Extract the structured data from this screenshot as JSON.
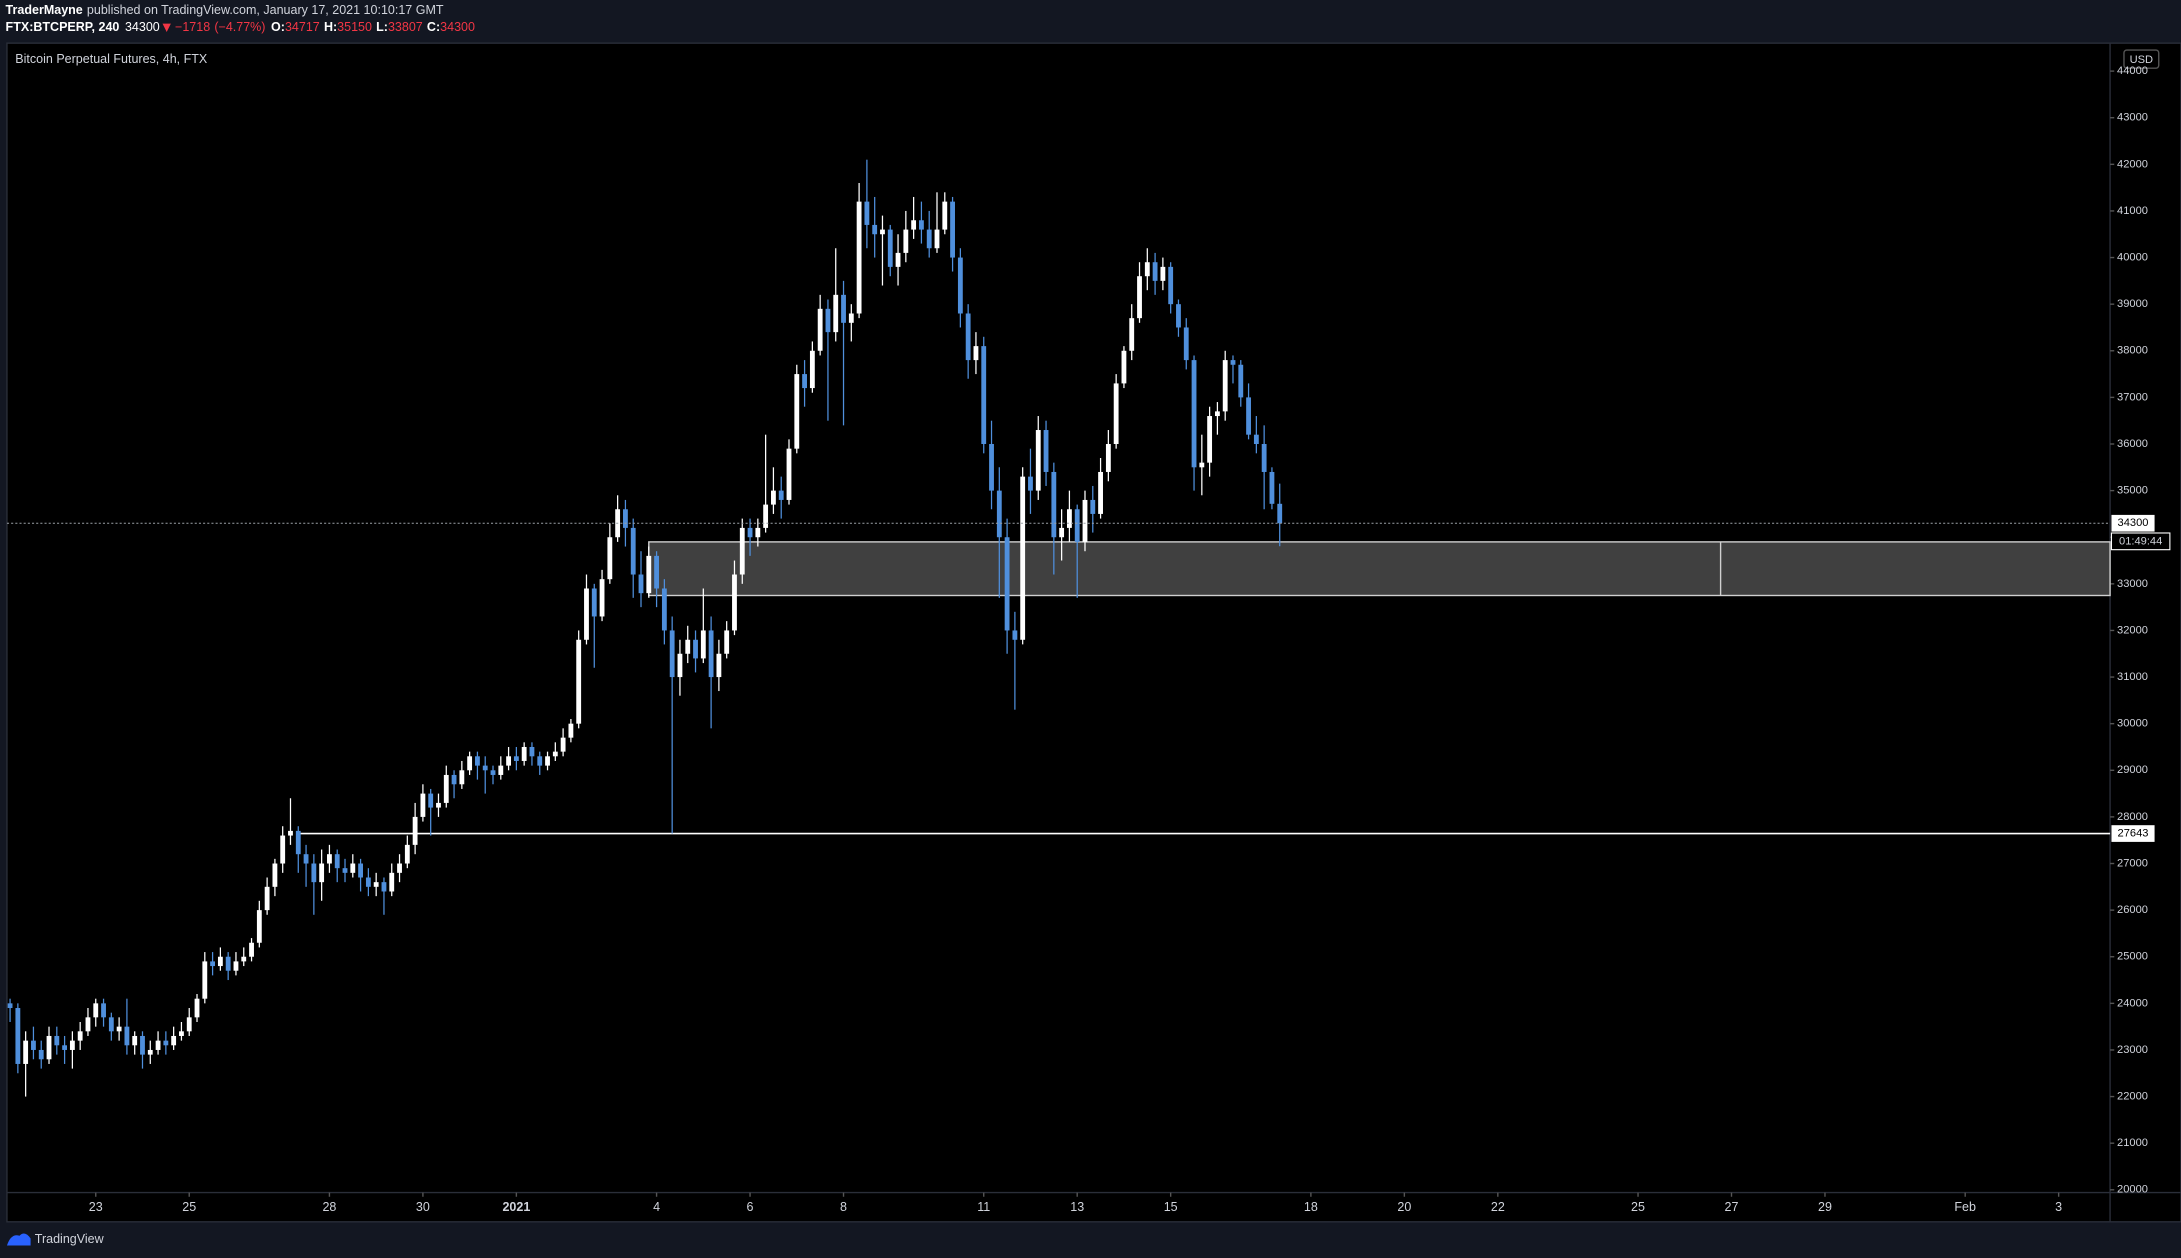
{
  "header": {
    "author": "TraderMayne",
    "published": "published on TradingView.com, January 17, 2021 10:10:17 GMT"
  },
  "footer": {
    "brand": "TradingView"
  },
  "chart_data": {
    "type": "candlestick",
    "title": "Bitcoin Perpetual Futures, 4h, FTX",
    "symbol": "FTX:BTCPERP, 240",
    "change": {
      "value": -1718,
      "label": "−1718"
    },
    "change_pct": {
      "value": -4.77,
      "label": "(−4.77%)"
    },
    "ohlc_labels": [
      "O:",
      "H:",
      "L:",
      "C:"
    ],
    "currency": "USD",
    "countdown": "01:49:44",
    "up_color": "#ffffff",
    "down_color": "#4f8fdc",
    "grid": false,
    "ylim": [
      19940,
      44600
    ],
    "yticks": [
      20000,
      21000,
      22000,
      23000,
      24000,
      25000,
      26000,
      27000,
      28000,
      29000,
      30000,
      31000,
      32000,
      33000,
      34000,
      35000,
      36000,
      37000,
      38000,
      39000,
      40000,
      41000,
      42000,
      43000,
      44000
    ],
    "xlim": [
      -0.4,
      269.6
    ],
    "xticks": [
      {
        "value": 11,
        "label": "23"
      },
      {
        "value": 23,
        "label": "25"
      },
      {
        "value": 41,
        "label": "28"
      },
      {
        "value": 53,
        "label": "30"
      },
      {
        "value": 65,
        "label": "2021"
      },
      {
        "value": 83,
        "label": "4"
      },
      {
        "value": 95,
        "label": "6"
      },
      {
        "value": 107,
        "label": "8"
      },
      {
        "value": 125,
        "label": "11"
      },
      {
        "value": 137,
        "label": "13"
      },
      {
        "value": 149,
        "label": "15"
      },
      {
        "value": 167,
        "label": "18"
      },
      {
        "value": 179,
        "label": "20"
      },
      {
        "value": 191,
        "label": "22"
      },
      {
        "value": 209,
        "label": "25"
      },
      {
        "value": 221,
        "label": "27"
      },
      {
        "value": 233,
        "label": "29"
      },
      {
        "value": 251,
        "label": "Feb"
      },
      {
        "value": 263,
        "label": "3"
      }
    ],
    "zones": [
      {
        "low": 32750,
        "high": 33900,
        "x_start": 82,
        "x_split": 219.6,
        "color": "#404040",
        "border": "#d0d0d0"
      }
    ],
    "hlines": [
      {
        "value": 27643,
        "x_start": 37,
        "color": "#ffffff"
      }
    ],
    "ohlc": [
      [
        24000,
        24100,
        23600,
        23900
      ],
      [
        23900,
        24000,
        22500,
        22700
      ],
      [
        22700,
        23400,
        22000,
        23200
      ],
      [
        23200,
        23500,
        22800,
        23000
      ],
      [
        23000,
        23200,
        22600,
        22800
      ],
      [
        22800,
        23500,
        22700,
        23300
      ],
      [
        23300,
        23500,
        22900,
        23100
      ],
      [
        23100,
        23300,
        22700,
        23000
      ],
      [
        23000,
        23400,
        22600,
        23200
      ],
      [
        23200,
        23600,
        23000,
        23400
      ],
      [
        23400,
        23900,
        23300,
        23700
      ],
      [
        23700,
        24100,
        23500,
        24000
      ],
      [
        24000,
        24100,
        23500,
        23700
      ],
      [
        23700,
        23800,
        23200,
        23400
      ],
      [
        23400,
        23700,
        23200,
        23500
      ],
      [
        23500,
        24100,
        22900,
        23100
      ],
      [
        23100,
        23400,
        22900,
        23300
      ],
      [
        23300,
        23400,
        22600,
        22900
      ],
      [
        22900,
        23200,
        22700,
        23000
      ],
      [
        23000,
        23400,
        22900,
        23200
      ],
      [
        23200,
        23400,
        22900,
        23100
      ],
      [
        23100,
        23500,
        23000,
        23300
      ],
      [
        23300,
        23600,
        23200,
        23400
      ],
      [
        23400,
        23900,
        23300,
        23700
      ],
      [
        23700,
        24200,
        23600,
        24100
      ],
      [
        24100,
        25100,
        24000,
        24900
      ],
      [
        24900,
        25100,
        24600,
        24800
      ],
      [
        24800,
        25200,
        24700,
        25000
      ],
      [
        25000,
        25100,
        24500,
        24700
      ],
      [
        24700,
        25100,
        24600,
        24900
      ],
      [
        24900,
        25200,
        24800,
        25000
      ],
      [
        25000,
        25400,
        24900,
        25300
      ],
      [
        25300,
        26200,
        25200,
        26000
      ],
      [
        26000,
        26700,
        25900,
        26500
      ],
      [
        26500,
        27100,
        26300,
        27000
      ],
      [
        27000,
        27800,
        26800,
        27600
      ],
      [
        27600,
        28400,
        27400,
        27700
      ],
      [
        27700,
        27800,
        26800,
        27200
      ],
      [
        27200,
        27400,
        26500,
        27000
      ],
      [
        27000,
        27200,
        25900,
        26600
      ],
      [
        26600,
        27300,
        26200,
        27000
      ],
      [
        27000,
        27400,
        26800,
        27200
      ],
      [
        27200,
        27300,
        26600,
        26900
      ],
      [
        26900,
        27100,
        26600,
        26800
      ],
      [
        26800,
        27200,
        26700,
        27000
      ],
      [
        27000,
        27100,
        26400,
        26700
      ],
      [
        26700,
        26900,
        26300,
        26500
      ],
      [
        26500,
        26800,
        26300,
        26600
      ],
      [
        26600,
        26700,
        25900,
        26400
      ],
      [
        26400,
        27000,
        26300,
        26800
      ],
      [
        26800,
        27200,
        26600,
        27000
      ],
      [
        27000,
        27600,
        26900,
        27400
      ],
      [
        27400,
        28300,
        27200,
        28000
      ],
      [
        28000,
        28700,
        27900,
        28500
      ],
      [
        28500,
        28600,
        27600,
        28200
      ],
      [
        28200,
        28500,
        28000,
        28300
      ],
      [
        28300,
        29100,
        28200,
        28900
      ],
      [
        28900,
        29000,
        28400,
        28700
      ],
      [
        28700,
        29200,
        28600,
        29000
      ],
      [
        29000,
        29400,
        28900,
        29300
      ],
      [
        29300,
        29400,
        28800,
        29100
      ],
      [
        29100,
        29300,
        28500,
        29000
      ],
      [
        29000,
        29100,
        28700,
        28900
      ],
      [
        28900,
        29300,
        28800,
        29100
      ],
      [
        29100,
        29500,
        29000,
        29300
      ],
      [
        29300,
        29500,
        29000,
        29200
      ],
      [
        29200,
        29600,
        29100,
        29500
      ],
      [
        29500,
        29600,
        29100,
        29300
      ],
      [
        29300,
        29400,
        28900,
        29100
      ],
      [
        29100,
        29400,
        29000,
        29300
      ],
      [
        29300,
        29600,
        29200,
        29400
      ],
      [
        29400,
        29900,
        29300,
        29700
      ],
      [
        29700,
        30100,
        29600,
        30000
      ],
      [
        30000,
        32000,
        29900,
        31800
      ],
      [
        31800,
        33200,
        31700,
        32900
      ],
      [
        32900,
        33000,
        31200,
        32300
      ],
      [
        32300,
        33300,
        32200,
        33100
      ],
      [
        33100,
        34300,
        33000,
        34000
      ],
      [
        34000,
        34900,
        33900,
        34600
      ],
      [
        34600,
        34800,
        33800,
        34200
      ],
      [
        34200,
        34400,
        32700,
        33200
      ],
      [
        33200,
        33700,
        32500,
        32800
      ],
      [
        32800,
        33800,
        32700,
        33600
      ],
      [
        33600,
        33700,
        32500,
        32900
      ],
      [
        32900,
        33100,
        31700,
        32000
      ],
      [
        32000,
        32300,
        27643,
        31000
      ],
      [
        31000,
        31800,
        30600,
        31500
      ],
      [
        31500,
        32100,
        31300,
        31800
      ],
      [
        31800,
        32000,
        31100,
        31400
      ],
      [
        31400,
        32900,
        31300,
        32000
      ],
      [
        32000,
        32300,
        29900,
        31000
      ],
      [
        31000,
        31800,
        30700,
        31500
      ],
      [
        31500,
        32200,
        31400,
        32000
      ],
      [
        32000,
        33500,
        31900,
        33200
      ],
      [
        33200,
        34400,
        33000,
        34200
      ],
      [
        34200,
        34400,
        33600,
        34000
      ],
      [
        34000,
        34400,
        33800,
        34200
      ],
      [
        34200,
        36200,
        34100,
        34700
      ],
      [
        34700,
        35500,
        34500,
        35000
      ],
      [
        35000,
        35300,
        34400,
        34800
      ],
      [
        34800,
        36100,
        34700,
        35900
      ],
      [
        35900,
        37700,
        35800,
        37500
      ],
      [
        37500,
        37800,
        36800,
        37200
      ],
      [
        37200,
        38200,
        37100,
        38000
      ],
      [
        38000,
        39200,
        37900,
        38900
      ],
      [
        38900,
        39100,
        36500,
        38400
      ],
      [
        38400,
        40200,
        38200,
        39200
      ],
      [
        39200,
        39500,
        36400,
        38600
      ],
      [
        38600,
        39000,
        38200,
        38800
      ],
      [
        38800,
        41600,
        38700,
        41200
      ],
      [
        41200,
        42100,
        40200,
        40700
      ],
      [
        40700,
        41300,
        40000,
        40500
      ],
      [
        40500,
        40900,
        39400,
        40600
      ],
      [
        40600,
        40700,
        39600,
        39800
      ],
      [
        39800,
        40500,
        39400,
        40100
      ],
      [
        40100,
        41000,
        39900,
        40600
      ],
      [
        40600,
        41300,
        40400,
        40800
      ],
      [
        40800,
        41200,
        40300,
        40600
      ],
      [
        40600,
        41000,
        40000,
        40200
      ],
      [
        40200,
        41400,
        40100,
        40600
      ],
      [
        40600,
        41400,
        40500,
        41200
      ],
      [
        41200,
        41300,
        39700,
        40000
      ],
      [
        40000,
        40200,
        38500,
        38800
      ],
      [
        38800,
        39000,
        37400,
        37800
      ],
      [
        37800,
        38400,
        37500,
        38100
      ],
      [
        38100,
        38300,
        35800,
        36000
      ],
      [
        36000,
        36500,
        34600,
        35000
      ],
      [
        35000,
        35500,
        32700,
        34000
      ],
      [
        34000,
        34400,
        31500,
        32000
      ],
      [
        32000,
        32400,
        30300,
        31800
      ],
      [
        31800,
        35500,
        31700,
        35300
      ],
      [
        35300,
        35900,
        34500,
        35000
      ],
      [
        35000,
        36600,
        34800,
        36300
      ],
      [
        36300,
        36500,
        35100,
        35400
      ],
      [
        35400,
        35600,
        33200,
        34000
      ],
      [
        34000,
        34600,
        33500,
        34200
      ],
      [
        34200,
        35000,
        33900,
        34600
      ],
      [
        34600,
        34700,
        32700,
        33900
      ],
      [
        33900,
        35000,
        33700,
        34800
      ],
      [
        34800,
        35100,
        34100,
        34500
      ],
      [
        34500,
        35700,
        34400,
        35400
      ],
      [
        35400,
        36300,
        35200,
        36000
      ],
      [
        36000,
        37500,
        35900,
        37300
      ],
      [
        37300,
        38100,
        37200,
        38000
      ],
      [
        38000,
        39000,
        37800,
        38700
      ],
      [
        38700,
        39900,
        38600,
        39600
      ],
      [
        39600,
        40200,
        39300,
        39900
      ],
      [
        39900,
        40100,
        39200,
        39500
      ],
      [
        39500,
        40000,
        39300,
        39800
      ],
      [
        39800,
        39900,
        38800,
        39000
      ],
      [
        39000,
        39100,
        38300,
        38500
      ],
      [
        38500,
        38700,
        37600,
        37800
      ],
      [
        37800,
        37900,
        35000,
        35500
      ],
      [
        35500,
        36200,
        34900,
        35600
      ],
      [
        35600,
        36800,
        35300,
        36600
      ],
      [
        36600,
        36900,
        36200,
        36700
      ],
      [
        36700,
        38000,
        36500,
        37800
      ],
      [
        37800,
        37900,
        37300,
        37700
      ],
      [
        37700,
        37800,
        36800,
        37000
      ],
      [
        37000,
        37300,
        36100,
        36200
      ],
      [
        36200,
        36600,
        35800,
        36000
      ],
      [
        36000,
        36400,
        34600,
        35400
      ],
      [
        35400,
        35500,
        34600,
        34717
      ],
      [
        34717,
        35150,
        33807,
        34300
      ]
    ]
  }
}
